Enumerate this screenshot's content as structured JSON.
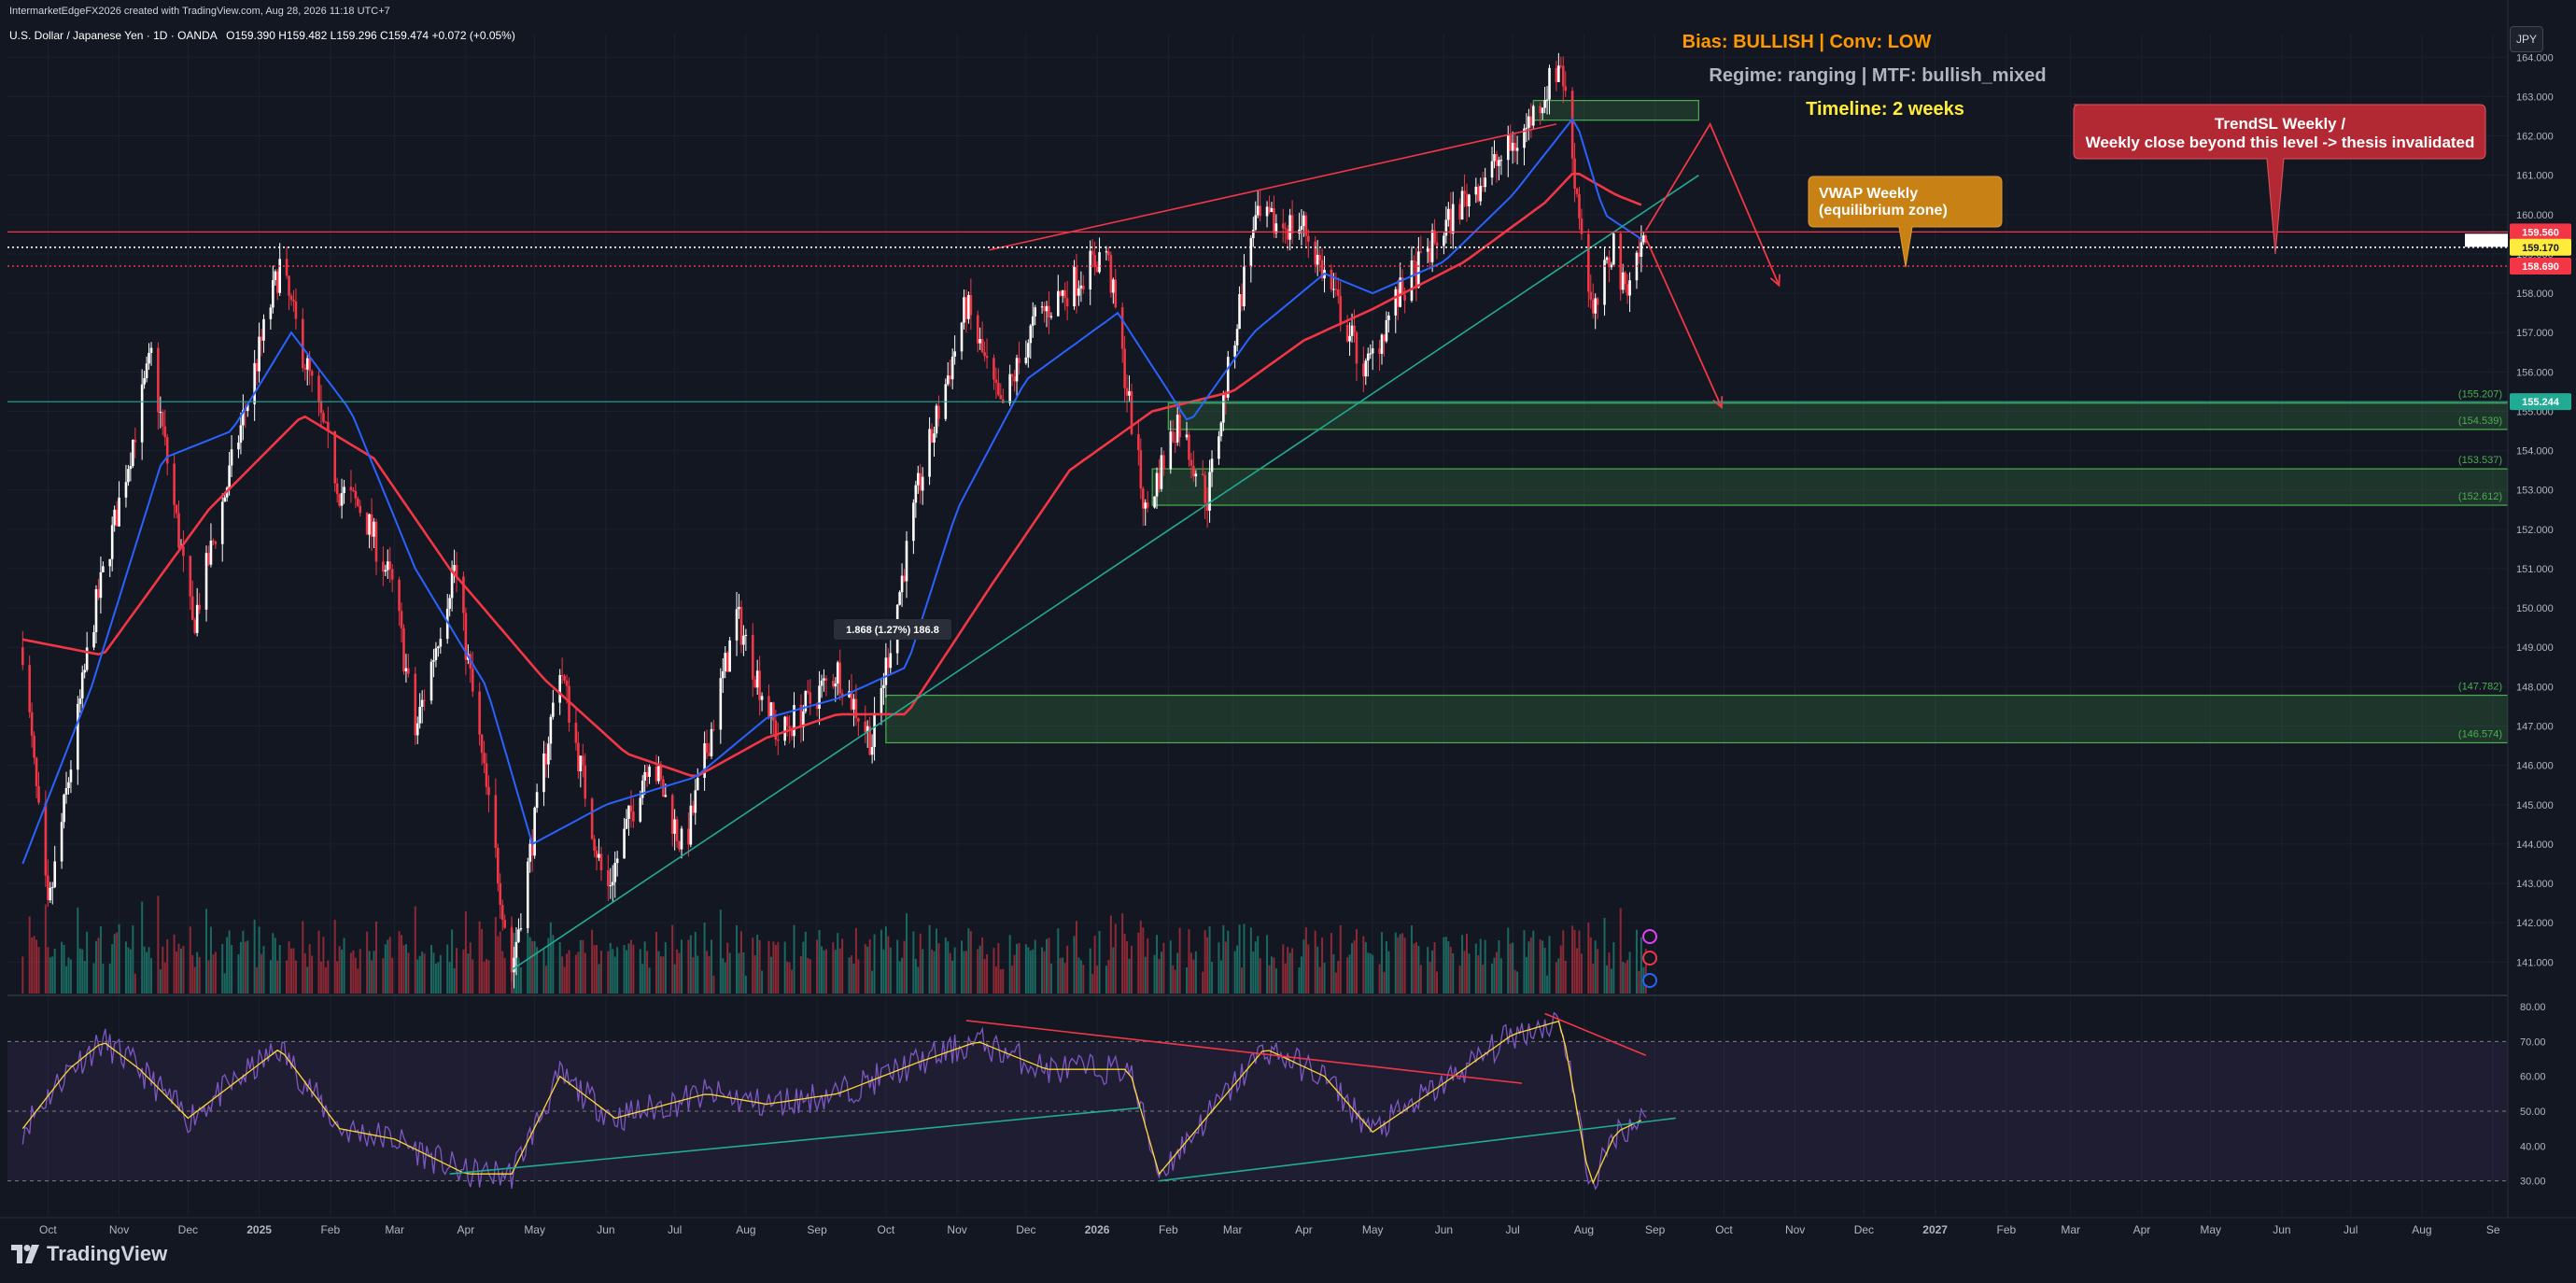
{
  "header": {
    "credit": "IntermarketEdgeFX2026 created with TradingView.com, Aug 28, 2026 11:18 UTC+7",
    "symbol": "U.S. Dollar / Japanese Yen · 1D · OANDA",
    "open_label": "O",
    "open": "159.390",
    "high_label": "H",
    "high": "159.482",
    "low_label": "L",
    "low": "159.296",
    "close_label": "C",
    "close": "159.474",
    "change": "+0.072 (+0.05%)"
  },
  "currency_button": "JPY",
  "brand": "TradingView",
  "annotations": {
    "bias": "Bias: BULLISH | Conv: LOW",
    "regime": "Regime: ranging | MTF: bullish_mixed",
    "timeline": "Timeline: 2 weeks",
    "trendsl_line1": "TrendSL Weekly /",
    "trendsl_line2": "Weekly close beyond this level -> thesis invalidated",
    "vwap_line1": "VWAP Weekly",
    "vwap_line2": "(equilibrium zone)",
    "measure": "1.868 (1.27%) 186.8"
  },
  "colors": {
    "background": "#131722",
    "bull_candle": "#ffffff",
    "bear_candle": "#f23645",
    "ema_fast": "#2962ff",
    "ema_slow": "#f23645",
    "trendline": "#22ab94",
    "zone": "#4caf50",
    "rsi": "#7e57c2",
    "rsi_ma": "#fdd835",
    "bias_text": "#ff9800",
    "timeline_text": "#ffeb3b",
    "trendsl_box": "#b22833",
    "vwap_box": "#c78114"
  },
  "chart_data": {
    "type": "candlestick",
    "price_axis": {
      "ylim": [
        140.2,
        164.6
      ],
      "ticks": [
        "164.000",
        "163.000",
        "162.000",
        "161.000",
        "160.000",
        "159.000",
        "158.000",
        "157.000",
        "156.000",
        "155.000",
        "154.000",
        "153.000",
        "152.000",
        "151.000",
        "150.000",
        "149.000",
        "148.000",
        "147.000",
        "146.000",
        "145.000",
        "144.000",
        "143.000",
        "142.000",
        "141.000"
      ]
    },
    "time_axis": {
      "labels": [
        "Oct",
        "Nov",
        "Dec",
        "2025",
        "Feb",
        "Mar",
        "Apr",
        "May",
        "Jun",
        "Jul",
        "Aug",
        "Sep",
        "Oct",
        "Nov",
        "Dec",
        "2026",
        "Feb",
        "Mar",
        "Apr",
        "May",
        "Jun",
        "Jul",
        "Aug",
        "Sep",
        "Oct",
        "Nov",
        "Dec",
        "2027",
        "Feb",
        "Mar",
        "Apr",
        "May",
        "Jun",
        "Jul",
        "Aug",
        "Se"
      ],
      "bold_labels": [
        "2025",
        "2026",
        "2027"
      ]
    },
    "price_keypoints": [
      {
        "x": "2024-09-20",
        "y": 149.0
      },
      {
        "x": "2024-10-01",
        "y": 142.2
      },
      {
        "x": "2024-10-20",
        "y": 149.5
      },
      {
        "x": "2024-11-15",
        "y": 156.4
      },
      {
        "x": "2024-12-03",
        "y": 149.5
      },
      {
        "x": "2025-01-10",
        "y": 158.7
      },
      {
        "x": "2025-02-05",
        "y": 153.0
      },
      {
        "x": "2025-02-15",
        "y": 152.5
      },
      {
        "x": "2025-03-01",
        "y": 150.4
      },
      {
        "x": "2025-03-10",
        "y": 146.8
      },
      {
        "x": "2025-03-27",
        "y": 151.1
      },
      {
        "x": "2025-04-21",
        "y": 140.8
      },
      {
        "x": "2025-05-12",
        "y": 148.6
      },
      {
        "x": "2025-06-01",
        "y": 142.7
      },
      {
        "x": "2025-06-20",
        "y": 146.3
      },
      {
        "x": "2025-07-05",
        "y": 143.8
      },
      {
        "x": "2025-07-28",
        "y": 149.8
      },
      {
        "x": "2025-08-15",
        "y": 146.7
      },
      {
        "x": "2025-09-10",
        "y": 148.4
      },
      {
        "x": "2025-09-25",
        "y": 146.6
      },
      {
        "x": "2025-10-15",
        "y": 153.0
      },
      {
        "x": "2025-11-05",
        "y": 157.7
      },
      {
        "x": "2025-11-20",
        "y": 155.0
      },
      {
        "x": "2025-12-05",
        "y": 157.3
      },
      {
        "x": "2026-01-05",
        "y": 159.1
      },
      {
        "x": "2026-01-22",
        "y": 152.4
      },
      {
        "x": "2026-02-05",
        "y": 154.8
      },
      {
        "x": "2026-02-18",
        "y": 152.8
      },
      {
        "x": "2026-03-10",
        "y": 159.8
      },
      {
        "x": "2026-04-01",
        "y": 159.7
      },
      {
        "x": "2026-04-28",
        "y": 156.0
      },
      {
        "x": "2026-05-10",
        "y": 157.7
      },
      {
        "x": "2026-06-10",
        "y": 160.4
      },
      {
        "x": "2026-07-05",
        "y": 162.0
      },
      {
        "x": "2026-07-22",
        "y": 163.9
      },
      {
        "x": "2026-07-28",
        "y": 161.0
      },
      {
        "x": "2026-08-05",
        "y": 157.3
      },
      {
        "x": "2026-08-14",
        "y": 159.3
      },
      {
        "x": "2026-08-18",
        "y": 158.1
      },
      {
        "x": "2026-08-28",
        "y": 159.47
      }
    ],
    "ema_fast_keypoints": [
      {
        "x": "2024-09-20",
        "y": 143.5
      },
      {
        "x": "2024-10-20",
        "y": 148.0
      },
      {
        "x": "2024-11-20",
        "y": 153.8
      },
      {
        "x": "2024-12-20",
        "y": 154.5
      },
      {
        "x": "2025-01-15",
        "y": 157.0
      },
      {
        "x": "2025-02-10",
        "y": 155.0
      },
      {
        "x": "2025-03-10",
        "y": 151.0
      },
      {
        "x": "2025-04-10",
        "y": 148.0
      },
      {
        "x": "2025-04-30",
        "y": 144.0
      },
      {
        "x": "2025-06-01",
        "y": 145.0
      },
      {
        "x": "2025-07-10",
        "y": 145.7
      },
      {
        "x": "2025-08-10",
        "y": 147.2
      },
      {
        "x": "2025-09-10",
        "y": 147.7
      },
      {
        "x": "2025-10-10",
        "y": 148.5
      },
      {
        "x": "2025-11-01",
        "y": 152.5
      },
      {
        "x": "2025-12-01",
        "y": 155.8
      },
      {
        "x": "2026-01-10",
        "y": 157.5
      },
      {
        "x": "2026-02-10",
        "y": 154.7
      },
      {
        "x": "2026-03-10",
        "y": 157.0
      },
      {
        "x": "2026-04-10",
        "y": 158.5
      },
      {
        "x": "2026-05-01",
        "y": 158.0
      },
      {
        "x": "2026-06-01",
        "y": 158.8
      },
      {
        "x": "2026-07-01",
        "y": 160.5
      },
      {
        "x": "2026-07-28",
        "y": 162.5
      },
      {
        "x": "2026-08-10",
        "y": 160.0
      },
      {
        "x": "2026-08-28",
        "y": 159.3
      }
    ],
    "ema_slow_keypoints": [
      {
        "x": "2024-09-20",
        "y": 149.2
      },
      {
        "x": "2024-10-25",
        "y": 148.8
      },
      {
        "x": "2024-12-10",
        "y": 152.5
      },
      {
        "x": "2025-01-20",
        "y": 154.9
      },
      {
        "x": "2025-02-20",
        "y": 153.8
      },
      {
        "x": "2025-03-25",
        "y": 151.0
      },
      {
        "x": "2025-05-05",
        "y": 148.2
      },
      {
        "x": "2025-06-10",
        "y": 146.3
      },
      {
        "x": "2025-07-10",
        "y": 145.7
      },
      {
        "x": "2025-08-10",
        "y": 146.7
      },
      {
        "x": "2025-09-10",
        "y": 147.3
      },
      {
        "x": "2025-10-10",
        "y": 147.3
      },
      {
        "x": "2025-11-15",
        "y": 150.5
      },
      {
        "x": "2025-12-20",
        "y": 153.5
      },
      {
        "x": "2026-01-25",
        "y": 155.0
      },
      {
        "x": "2026-03-01",
        "y": 155.5
      },
      {
        "x": "2026-04-01",
        "y": 156.8
      },
      {
        "x": "2026-05-01",
        "y": 157.6
      },
      {
        "x": "2026-06-10",
        "y": 158.8
      },
      {
        "x": "2026-07-15",
        "y": 160.3
      },
      {
        "x": "2026-07-28",
        "y": 161.1
      },
      {
        "x": "2026-08-15",
        "y": 160.5
      },
      {
        "x": "2026-08-28",
        "y": 160.2
      }
    ],
    "horizontal_levels": [
      {
        "price": 159.56,
        "label": "159.560",
        "style": "solid",
        "color": "#f23645"
      },
      {
        "price": 159.17,
        "label": "159.170",
        "style": "dotted",
        "color": "#ffffff"
      },
      {
        "price": 158.69,
        "label": "158.690",
        "style": "dotted",
        "color": "#f23645"
      },
      {
        "price": 155.244,
        "label": "155.244",
        "style": "solid",
        "color": "#22ab94"
      }
    ],
    "zones": [
      {
        "from": "2026-02-01",
        "top": 155.207,
        "bottom": 154.539,
        "top_label": "(155.207)",
        "bottom_label": "(154.539)"
      },
      {
        "from": "2026-01-25",
        "top": 153.537,
        "bottom": 152.612,
        "top_label": "(153.537)",
        "bottom_label": "(152.612)"
      },
      {
        "from": "2025-10-01",
        "top": 147.782,
        "bottom": 146.574,
        "top_label": "(147.782)",
        "bottom_label": "(146.574)"
      },
      {
        "from": "2026-07-10",
        "to": "2026-09-20",
        "top": 162.9,
        "bottom": 162.4,
        "top_label": "",
        "bottom_label": ""
      }
    ],
    "trendlines": [
      {
        "from": {
          "x": "2025-04-21",
          "y": 140.8
        },
        "to": {
          "x": "2026-09-20",
          "y": 161.0
        },
        "color": "#22ab94"
      },
      {
        "from": {
          "x": "2025-11-15",
          "y": 159.1
        },
        "to": {
          "x": "2026-07-20",
          "y": 162.3
        },
        "color": "#f23645"
      }
    ],
    "projection_paths": [
      [
        {
          "x": "2026-08-28",
          "y": 159.6
        },
        {
          "x": "2026-09-25",
          "y": 162.3
        },
        {
          "x": "2026-10-25",
          "y": 158.2
        }
      ],
      [
        {
          "x": "2026-08-28",
          "y": 159.4
        },
        {
          "x": "2026-09-30",
          "y": 155.1
        }
      ]
    ],
    "rsi": {
      "ylim": [
        20,
        80
      ],
      "ticks": [
        "80.00",
        "70.00",
        "60.00",
        "50.00",
        "40.00",
        "30.00"
      ],
      "band": [
        30,
        70
      ],
      "keypoints": [
        {
          "x": "2024-09-20",
          "y": 45
        },
        {
          "x": "2024-10-10",
          "y": 62
        },
        {
          "x": "2024-10-25",
          "y": 70
        },
        {
          "x": "2024-11-10",
          "y": 62
        },
        {
          "x": "2024-12-01",
          "y": 48
        },
        {
          "x": "2024-12-25",
          "y": 60
        },
        {
          "x": "2025-01-10",
          "y": 68
        },
        {
          "x": "2025-02-05",
          "y": 45
        },
        {
          "x": "2025-03-01",
          "y": 42
        },
        {
          "x": "2025-04-01",
          "y": 32
        },
        {
          "x": "2025-04-21",
          "y": 32
        },
        {
          "x": "2025-05-12",
          "y": 60
        },
        {
          "x": "2025-06-05",
          "y": 48
        },
        {
          "x": "2025-07-15",
          "y": 55
        },
        {
          "x": "2025-08-10",
          "y": 52
        },
        {
          "x": "2025-09-10",
          "y": 55
        },
        {
          "x": "2025-10-15",
          "y": 64
        },
        {
          "x": "2025-11-10",
          "y": 70
        },
        {
          "x": "2025-12-10",
          "y": 62
        },
        {
          "x": "2026-01-15",
          "y": 62
        },
        {
          "x": "2026-01-28",
          "y": 32
        },
        {
          "x": "2026-02-20",
          "y": 50
        },
        {
          "x": "2026-03-15",
          "y": 68
        },
        {
          "x": "2026-04-10",
          "y": 60
        },
        {
          "x": "2026-05-01",
          "y": 44
        },
        {
          "x": "2026-06-01",
          "y": 58
        },
        {
          "x": "2026-07-01",
          "y": 72
        },
        {
          "x": "2026-07-22",
          "y": 76
        },
        {
          "x": "2026-08-04",
          "y": 28
        },
        {
          "x": "2026-08-15",
          "y": 44
        },
        {
          "x": "2026-08-28",
          "y": 48
        }
      ],
      "lines": [
        {
          "from": {
            "x": "2025-03-25",
            "y": 32
          },
          "to": {
            "x": "2026-01-20",
            "y": 51
          },
          "color": "#22ab94"
        },
        {
          "from": {
            "x": "2026-01-28",
            "y": 30
          },
          "to": {
            "x": "2026-09-10",
            "y": 48
          },
          "color": "#22ab94"
        },
        {
          "from": {
            "x": "2025-11-05",
            "y": 76
          },
          "to": {
            "x": "2026-07-05",
            "y": 58
          },
          "color": "#f23645"
        },
        {
          "from": {
            "x": "2026-07-15",
            "y": 78
          },
          "to": {
            "x": "2026-08-28",
            "y": 66
          },
          "color": "#f23645"
        }
      ]
    }
  }
}
